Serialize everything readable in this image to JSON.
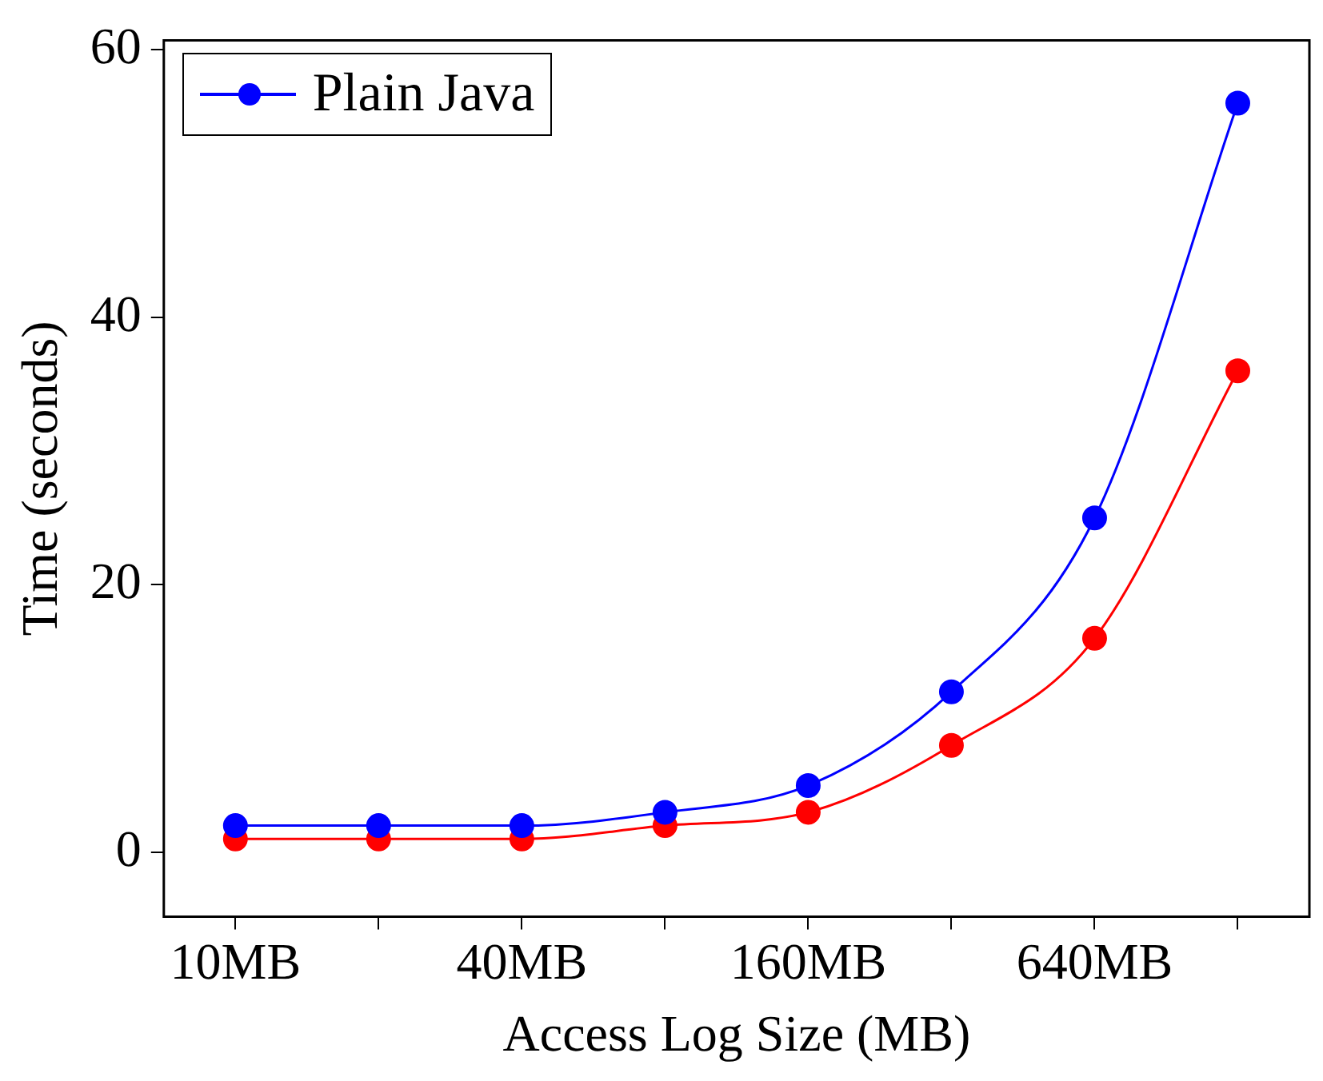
{
  "chart_data": {
    "type": "line",
    "xlabel": "Access Log Size (MB)",
    "ylabel": "Time (seconds)",
    "categories": [
      "10MB",
      null,
      "40MB",
      null,
      "160MB",
      null,
      "640MB",
      null
    ],
    "series": [
      {
        "name": "Plain Java",
        "color": "#0000ff",
        "values": [
          2,
          2,
          2,
          3,
          5,
          12,
          25,
          56
        ]
      },
      {
        "color": "#ff0000",
        "values": [
          1,
          1,
          1,
          2,
          3,
          8,
          16,
          36
        ]
      }
    ],
    "ylim": [
      -4.8,
      60.7
    ],
    "yticks": [
      0,
      20,
      40,
      60
    ],
    "grid": false,
    "legend": "top left",
    "marker": "circle",
    "line_style": "solid"
  }
}
